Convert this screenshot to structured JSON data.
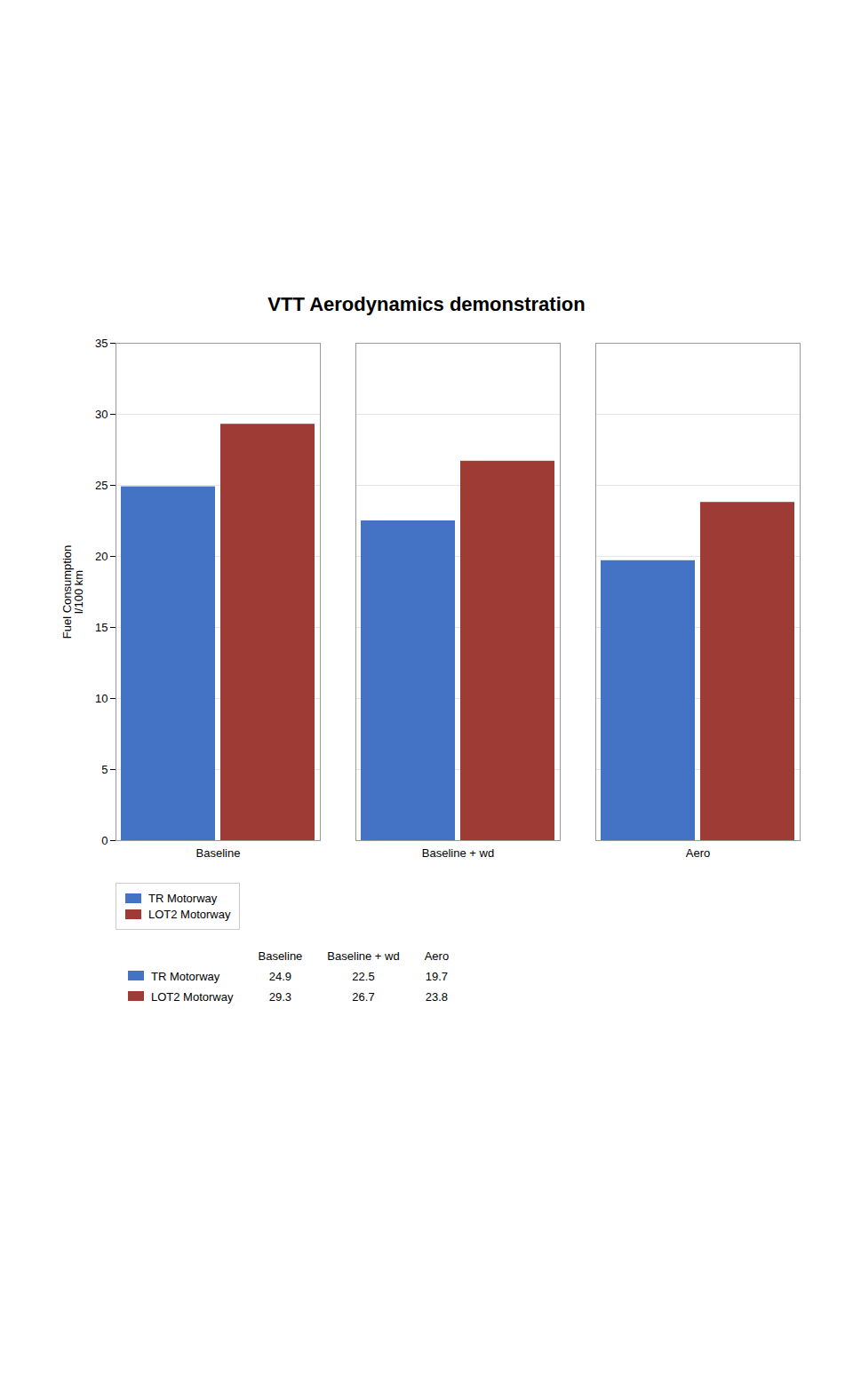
{
  "chart_data": {
    "type": "bar",
    "title": "VTT Aerodynamics demonstration",
    "categories": [
      "Baseline",
      "Baseline + wd",
      "Aero"
    ],
    "series": [
      {
        "name": "TR Motorway",
        "values": [
          24.9,
          22.5,
          19.7
        ],
        "color": "#4472C4"
      },
      {
        "name": "LOT2 Motorway",
        "values": [
          29.3,
          26.7,
          23.8
        ],
        "color": "#9E3B35"
      }
    ],
    "ylabel": "Fuel Consumption\nl/100 km",
    "ylim": [
      0,
      35
    ],
    "yticks": [
      0,
      5,
      10,
      15,
      20,
      25,
      30,
      35
    ],
    "grid": true,
    "legend": "lower left"
  }
}
